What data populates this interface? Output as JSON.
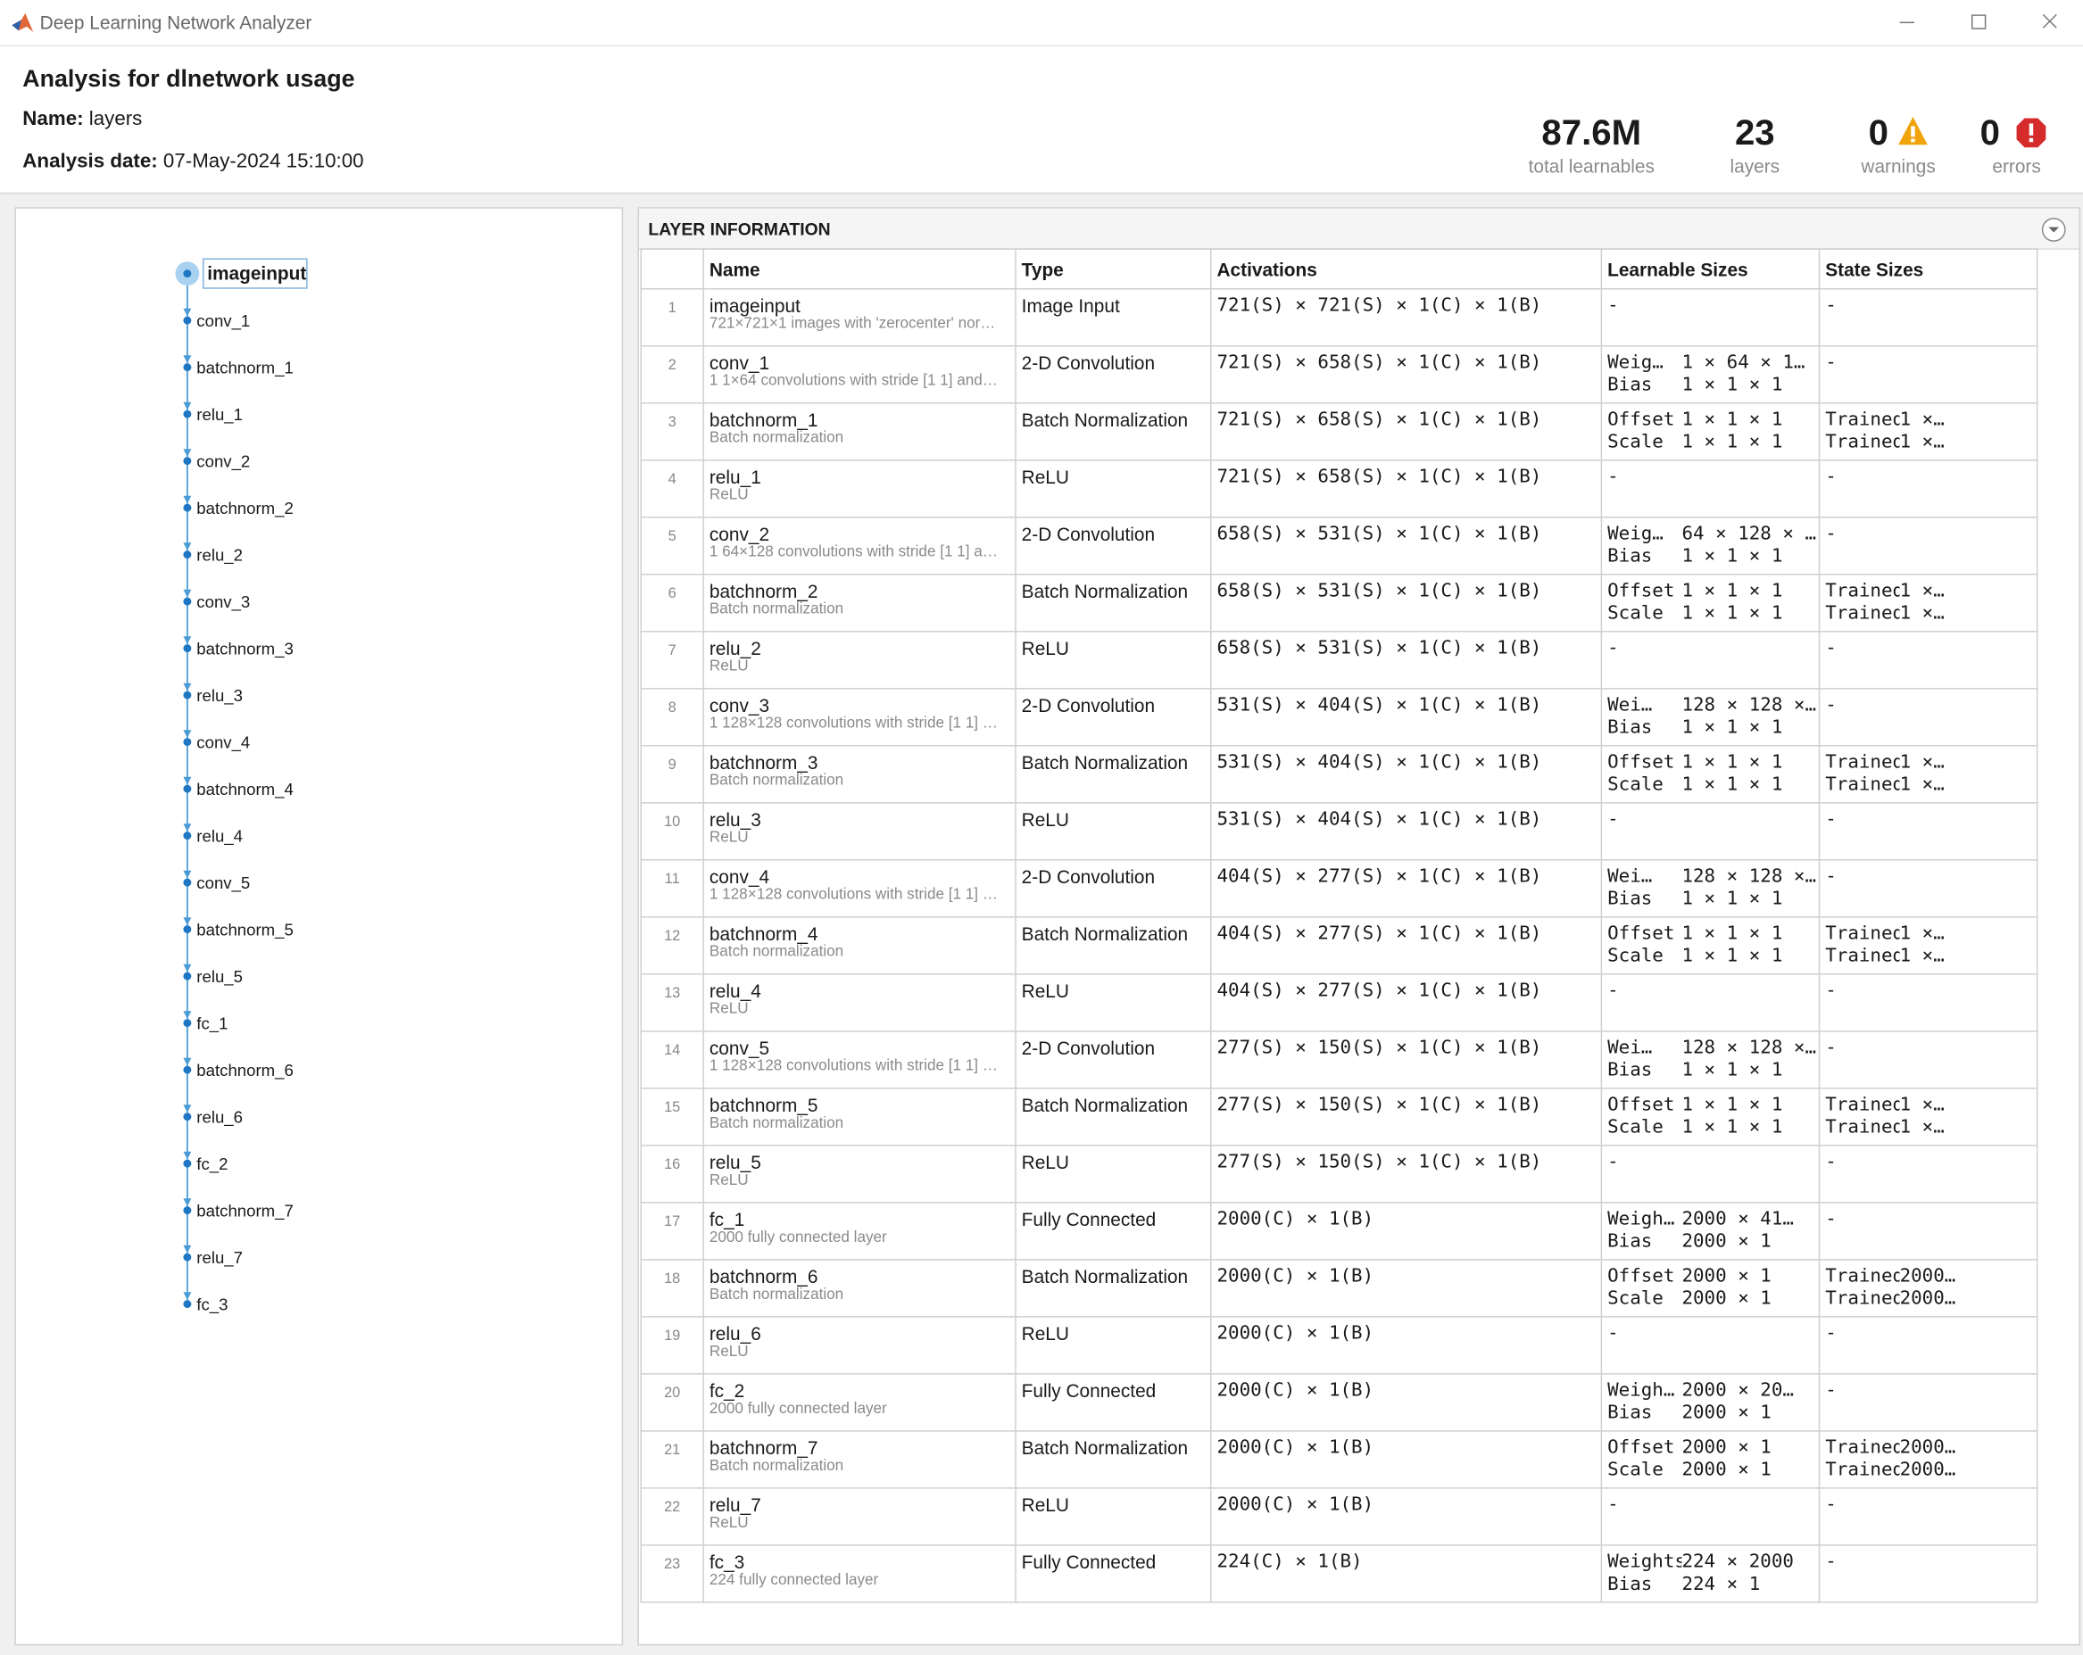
{
  "window": {
    "title": "Deep Learning Network Analyzer"
  },
  "header": {
    "title": "Analysis for dlnetwork usage",
    "name_label": "Name:",
    "name": "layers",
    "date_label": "Analysis date:",
    "date": "07-May-2024 15:10:00"
  },
  "summary": [
    {
      "value": "87.6M",
      "label": "total learnables"
    },
    {
      "value": 23,
      "label": "layers"
    },
    {
      "value": 0,
      "label": "warnings"
    },
    {
      "value": 0,
      "label": "errors"
    }
  ],
  "graph": {
    "nodes": [
      "imageinput",
      "conv_1",
      "batchnorm_1",
      "relu_1",
      "conv_2",
      "batchnorm_2",
      "relu_2",
      "conv_3",
      "batchnorm_3",
      "relu_3",
      "conv_4",
      "batchnorm_4",
      "relu_4",
      "conv_5",
      "batchnorm_5",
      "relu_5",
      "fc_1",
      "batchnorm_6",
      "relu_6",
      "fc_2",
      "batchnorm_7",
      "relu_7",
      "fc_3"
    ]
  },
  "table": {
    "title": "LAYER INFORMATION",
    "columns": [
      "Name",
      "Type",
      "Activations",
      "Learnable Sizes",
      "State Sizes"
    ],
    "rows": [
      {
        "index": 1,
        "name": "imageinput",
        "description": "721×721×1 images with 'zerocenter' nor…",
        "type": "Image Input",
        "activations": "721(S) × 721(S) × 1(C) × 1(B)",
        "learnables": [
          [
            "-"
          ]
        ],
        "states": [
          [
            "-"
          ]
        ]
      },
      {
        "index": 2,
        "name": "conv_1",
        "description": "1 1×64 convolutions with stride [1 1] and…",
        "type": "2-D Convolution",
        "activations": "721(S) × 658(S) × 1(C) × 1(B)",
        "learnables": [
          [
            "Weig…",
            "1 × 64 × 1…"
          ],
          [
            "Bias",
            "1 × 1 × 1"
          ]
        ],
        "states": [
          [
            "-"
          ]
        ]
      },
      {
        "index": 3,
        "name": "batchnorm_1",
        "description": "Batch normalization",
        "type": "Batch Normalization",
        "activations": "721(S) × 658(S) × 1(C) × 1(B)",
        "learnables": [
          [
            "Offset",
            "1 × 1 × 1"
          ],
          [
            "Scale",
            "1 × 1 × 1"
          ]
        ],
        "states": [
          [
            "TrainedMean",
            "1 ×…"
          ],
          [
            "TrainedVari…",
            "1 ×…"
          ]
        ]
      },
      {
        "index": 4,
        "name": "relu_1",
        "description": "ReLU",
        "type": "ReLU",
        "activations": "721(S) × 658(S) × 1(C) × 1(B)",
        "learnables": [
          [
            "-"
          ]
        ],
        "states": [
          [
            "-"
          ]
        ]
      },
      {
        "index": 5,
        "name": "conv_2",
        "description": "1 64×128 convolutions with stride [1 1] a…",
        "type": "2-D Convolution",
        "activations": "658(S) × 531(S) × 1(C) × 1(B)",
        "learnables": [
          [
            "Weig…",
            "64 × 128 × …"
          ],
          [
            "Bias",
            "1 × 1 × 1"
          ]
        ],
        "states": [
          [
            "-"
          ]
        ]
      },
      {
        "index": 6,
        "name": "batchnorm_2",
        "description": "Batch normalization",
        "type": "Batch Normalization",
        "activations": "658(S) × 531(S) × 1(C) × 1(B)",
        "learnables": [
          [
            "Offset",
            "1 × 1 × 1"
          ],
          [
            "Scale",
            "1 × 1 × 1"
          ]
        ],
        "states": [
          [
            "TrainedMean",
            "1 ×…"
          ],
          [
            "TrainedVari…",
            "1 ×…"
          ]
        ]
      },
      {
        "index": 7,
        "name": "relu_2",
        "description": "ReLU",
        "type": "ReLU",
        "activations": "658(S) × 531(S) × 1(C) × 1(B)",
        "learnables": [
          [
            "-"
          ]
        ],
        "states": [
          [
            "-"
          ]
        ]
      },
      {
        "index": 8,
        "name": "conv_3",
        "description": "1 128×128 convolutions with stride [1 1] …",
        "type": "2-D Convolution",
        "activations": "531(S) × 404(S) × 1(C) × 1(B)",
        "learnables": [
          [
            "Wei…",
            "128 × 128 ×…"
          ],
          [
            "Bias",
            "1 × 1 × 1"
          ]
        ],
        "states": [
          [
            "-"
          ]
        ]
      },
      {
        "index": 9,
        "name": "batchnorm_3",
        "description": "Batch normalization",
        "type": "Batch Normalization",
        "activations": "531(S) × 404(S) × 1(C) × 1(B)",
        "learnables": [
          [
            "Offset",
            "1 × 1 × 1"
          ],
          [
            "Scale",
            "1 × 1 × 1"
          ]
        ],
        "states": [
          [
            "TrainedMean",
            "1 ×…"
          ],
          [
            "TrainedVari…",
            "1 ×…"
          ]
        ]
      },
      {
        "index": 10,
        "name": "relu_3",
        "description": "ReLU",
        "type": "ReLU",
        "activations": "531(S) × 404(S) × 1(C) × 1(B)",
        "learnables": [
          [
            "-"
          ]
        ],
        "states": [
          [
            "-"
          ]
        ]
      },
      {
        "index": 11,
        "name": "conv_4",
        "description": "1 128×128 convolutions with stride [1 1] …",
        "type": "2-D Convolution",
        "activations": "404(S) × 277(S) × 1(C) × 1(B)",
        "learnables": [
          [
            "Wei…",
            "128 × 128 ×…"
          ],
          [
            "Bias",
            "1 × 1 × 1"
          ]
        ],
        "states": [
          [
            "-"
          ]
        ]
      },
      {
        "index": 12,
        "name": "batchnorm_4",
        "description": "Batch normalization",
        "type": "Batch Normalization",
        "activations": "404(S) × 277(S) × 1(C) × 1(B)",
        "learnables": [
          [
            "Offset",
            "1 × 1 × 1"
          ],
          [
            "Scale",
            "1 × 1 × 1"
          ]
        ],
        "states": [
          [
            "TrainedMean",
            "1 ×…"
          ],
          [
            "TrainedVari…",
            "1 ×…"
          ]
        ]
      },
      {
        "index": 13,
        "name": "relu_4",
        "description": "ReLU",
        "type": "ReLU",
        "activations": "404(S) × 277(S) × 1(C) × 1(B)",
        "learnables": [
          [
            "-"
          ]
        ],
        "states": [
          [
            "-"
          ]
        ]
      },
      {
        "index": 14,
        "name": "conv_5",
        "description": "1 128×128 convolutions with stride [1 1] …",
        "type": "2-D Convolution",
        "activations": "277(S) × 150(S) × 1(C) × 1(B)",
        "learnables": [
          [
            "Wei…",
            "128 × 128 ×…"
          ],
          [
            "Bias",
            "1 × 1 × 1"
          ]
        ],
        "states": [
          [
            "-"
          ]
        ]
      },
      {
        "index": 15,
        "name": "batchnorm_5",
        "description": "Batch normalization",
        "type": "Batch Normalization",
        "activations": "277(S) × 150(S) × 1(C) × 1(B)",
        "learnables": [
          [
            "Offset",
            "1 × 1 × 1"
          ],
          [
            "Scale",
            "1 × 1 × 1"
          ]
        ],
        "states": [
          [
            "TrainedMean",
            "1 ×…"
          ],
          [
            "TrainedVari…",
            "1 ×…"
          ]
        ]
      },
      {
        "index": 16,
        "name": "relu_5",
        "description": "ReLU",
        "type": "ReLU",
        "activations": "277(S) × 150(S) × 1(C) × 1(B)",
        "learnables": [
          [
            "-"
          ]
        ],
        "states": [
          [
            "-"
          ]
        ]
      },
      {
        "index": 17,
        "name": "fc_1",
        "description": "2000 fully connected layer",
        "type": "Fully Connected",
        "activations": "2000(C) × 1(B)",
        "learnables": [
          [
            "Weigh…",
            "2000 × 41…"
          ],
          [
            "Bias",
            "2000 × 1"
          ]
        ],
        "states": [
          [
            "-"
          ]
        ]
      },
      {
        "index": 18,
        "name": "batchnorm_6",
        "description": "Batch normalization",
        "type": "Batch Normalization",
        "activations": "2000(C) × 1(B)",
        "learnables": [
          [
            "Offset",
            "2000 × 1"
          ],
          [
            "Scale",
            "2000 × 1"
          ]
        ],
        "states": [
          [
            "TrainedMean",
            "2000…"
          ],
          [
            "TrainedVar…",
            "2000…"
          ]
        ]
      },
      {
        "index": 19,
        "name": "relu_6",
        "description": "ReLU",
        "type": "ReLU",
        "activations": "2000(C) × 1(B)",
        "learnables": [
          [
            "-"
          ]
        ],
        "states": [
          [
            "-"
          ]
        ]
      },
      {
        "index": 20,
        "name": "fc_2",
        "description": "2000 fully connected layer",
        "type": "Fully Connected",
        "activations": "2000(C) × 1(B)",
        "learnables": [
          [
            "Weigh…",
            "2000 × 20…"
          ],
          [
            "Bias",
            "2000 × 1"
          ]
        ],
        "states": [
          [
            "-"
          ]
        ]
      },
      {
        "index": 21,
        "name": "batchnorm_7",
        "description": "Batch normalization",
        "type": "Batch Normalization",
        "activations": "2000(C) × 1(B)",
        "learnables": [
          [
            "Offset",
            "2000 × 1"
          ],
          [
            "Scale",
            "2000 × 1"
          ]
        ],
        "states": [
          [
            "TrainedMean",
            "2000…"
          ],
          [
            "TrainedVar…",
            "2000…"
          ]
        ]
      },
      {
        "index": 22,
        "name": "relu_7",
        "description": "ReLU",
        "type": "ReLU",
        "activations": "2000(C) × 1(B)",
        "learnables": [
          [
            "-"
          ]
        ],
        "states": [
          [
            "-"
          ]
        ]
      },
      {
        "index": 23,
        "name": "fc_3",
        "description": "224 fully connected layer",
        "type": "Fully Connected",
        "activations": "224(C) × 1(B)",
        "learnables": [
          [
            "Weights",
            "224 × 2000"
          ],
          [
            "Bias",
            "224 × 1"
          ]
        ],
        "states": [
          [
            "-"
          ]
        ]
      }
    ]
  }
}
